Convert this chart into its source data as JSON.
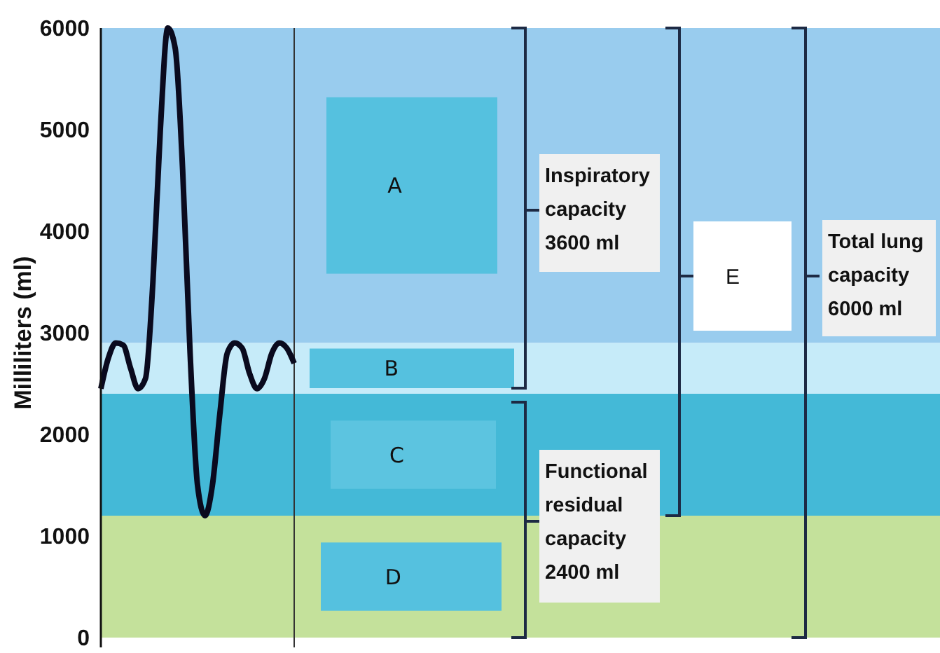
{
  "chart_data": {
    "type": "line",
    "ylabel": "Milliliters (ml)",
    "ylim": [
      0,
      6000
    ],
    "yticks": [
      0,
      1000,
      2000,
      3000,
      4000,
      5000,
      6000
    ],
    "grid": false,
    "categories": [
      null,
      null,
      null,
      null,
      null,
      null,
      null,
      null,
      null,
      null,
      null,
      null,
      null,
      null,
      null,
      null,
      null,
      null,
      null,
      null,
      null,
      null,
      null,
      null,
      null,
      null,
      null
    ],
    "series": [
      {
        "color": "#0a0a1e",
        "values": [
          2450,
          2750,
          2900,
          2880,
          2650,
          2450,
          2550,
          3500,
          5000,
          6000,
          5800,
          4600,
          2800,
          1500,
          1200,
          1500,
          2200,
          2800,
          2900,
          2850,
          2600,
          2450,
          2550,
          2800,
          2900,
          2850,
          2700
        ]
      }
    ],
    "bands": [
      {
        "axis": "y",
        "from": 2900,
        "to": 6000,
        "label": "A",
        "color": "#99ccee"
      },
      {
        "axis": "y",
        "from": 2400,
        "to": 2900,
        "label": "B",
        "color": "#c6ebf9"
      },
      {
        "axis": "y",
        "from": 1200,
        "to": 2400,
        "label": "C",
        "color": "#44b9d7"
      },
      {
        "axis": "y",
        "from": 0,
        "to": 1200,
        "label": "D",
        "color": "#c4e19b"
      }
    ],
    "annotations": [
      "Inspiratory capacity 3600 ml",
      "Functional residual capacity 2400 ml",
      "E",
      "Total lung capacity 6000 ml"
    ]
  }
}
